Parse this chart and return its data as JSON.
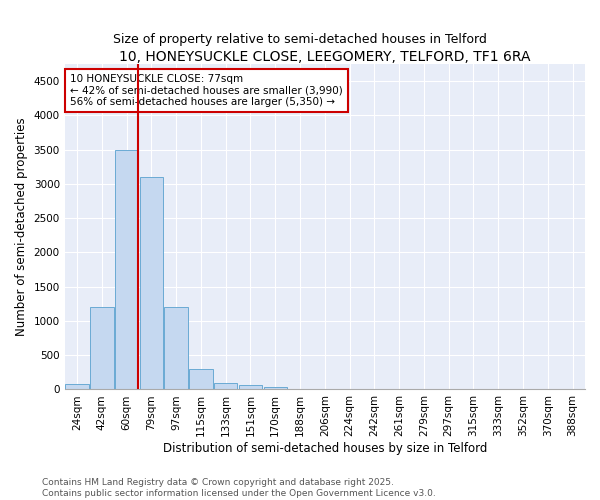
{
  "title": "10, HONEYSUCKLE CLOSE, LEEGOMERY, TELFORD, TF1 6RA",
  "subtitle": "Size of property relative to semi-detached houses in Telford",
  "xlabel": "Distribution of semi-detached houses by size in Telford",
  "ylabel": "Number of semi-detached properties",
  "categories": [
    "24sqm",
    "42sqm",
    "60sqm",
    "79sqm",
    "97sqm",
    "115sqm",
    "133sqm",
    "151sqm",
    "170sqm",
    "188sqm",
    "206sqm",
    "224sqm",
    "242sqm",
    "261sqm",
    "279sqm",
    "297sqm",
    "315sqm",
    "333sqm",
    "352sqm",
    "370sqm",
    "388sqm"
  ],
  "values": [
    80,
    1200,
    3500,
    3100,
    1200,
    300,
    100,
    70,
    30,
    5,
    0,
    0,
    0,
    0,
    0,
    0,
    0,
    0,
    0,
    0,
    0
  ],
  "bar_color": "#c5d8f0",
  "bar_edge_color": "#6aaad4",
  "vline_color": "#cc0000",
  "annotation_text": "10 HONEYSUCKLE CLOSE: 77sqm\n← 42% of semi-detached houses are smaller (3,990)\n56% of semi-detached houses are larger (5,350) →",
  "annotation_box_color": "#cc0000",
  "ylim": [
    0,
    4750
  ],
  "yticks": [
    0,
    500,
    1000,
    1500,
    2000,
    2500,
    3000,
    3500,
    4000,
    4500
  ],
  "background_color": "#e8edf8",
  "footer": "Contains HM Land Registry data © Crown copyright and database right 2025.\nContains public sector information licensed under the Open Government Licence v3.0.",
  "title_fontsize": 10,
  "xlabel_fontsize": 8.5,
  "ylabel_fontsize": 8.5,
  "tick_fontsize": 7.5,
  "annotation_fontsize": 7.5,
  "footer_fontsize": 6.5
}
